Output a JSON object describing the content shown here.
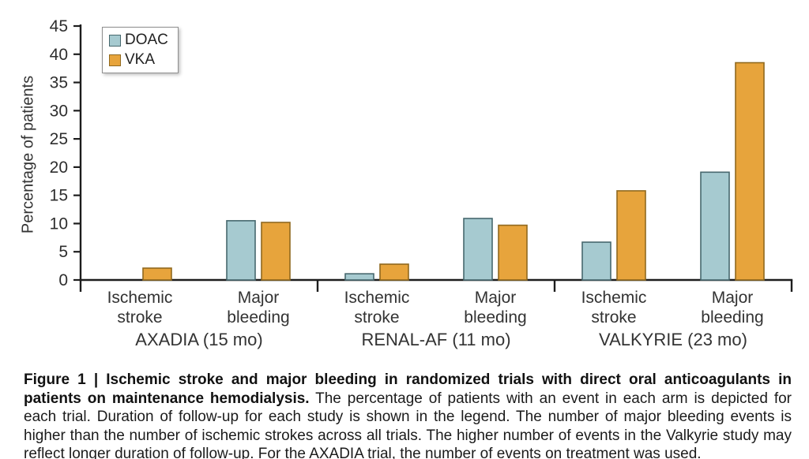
{
  "chart_data": {
    "type": "bar",
    "title": "",
    "xlabel": "",
    "ylabel": "Percentage of patients",
    "ylim": [
      0,
      45
    ],
    "ytick_step": 5,
    "grid": false,
    "legend_position": "top-left",
    "series": [
      {
        "name": "DOAC",
        "fill": "#a6cad0",
        "stroke": "#47686e"
      },
      {
        "name": "VKA",
        "fill": "#e7a43c",
        "stroke": "#90691f"
      }
    ],
    "groups": [
      {
        "label": "AXADIA (15 mo)",
        "categories": [
          {
            "label": "Ischemic stroke",
            "values": [
              0,
              2.1
            ]
          },
          {
            "label": "Major bleeding",
            "values": [
              10.5,
              10.2
            ]
          }
        ]
      },
      {
        "label": "RENAL-AF (11 mo)",
        "categories": [
          {
            "label": "Ischemic stroke",
            "values": [
              1.1,
              2.8
            ]
          },
          {
            "label": "Major bleeding",
            "values": [
              10.9,
              9.7
            ]
          }
        ]
      },
      {
        "label": "VALKYRIE (23 mo)",
        "categories": [
          {
            "label": "Ischemic stroke",
            "values": [
              6.7,
              15.8
            ]
          },
          {
            "label": "Major bleeding",
            "values": [
              19.1,
              38.5
            ]
          }
        ]
      }
    ],
    "colors": {
      "axis": "#1d1d1d",
      "tick_text": "#2e2e2e",
      "label_text": "#333333"
    }
  },
  "caption": {
    "bold": "Figure 1 | Ischemic stroke and major bleeding in randomized trials with direct oral anticoagulants in patients on maintenance hemodialysis.",
    "text": " The percentage of patients with an event in each arm is depicted for each trial. Duration of follow-up for each study is shown in the legend. The number of major bleeding events is higher than the number of ischemic strokes across all trials. The higher number of events in the Valkyrie study may reflect longer duration of follow-up. For the AXADIA trial, the number of events on treatment was used."
  }
}
